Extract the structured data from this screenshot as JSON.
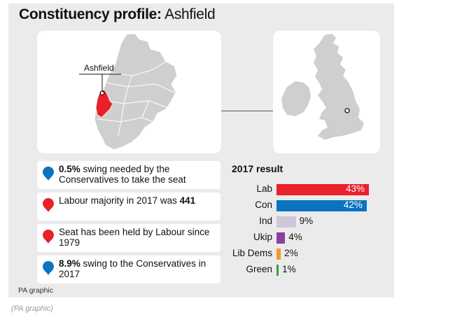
{
  "title": {
    "bold": "Constituency profile:",
    "regular": "Ashfield"
  },
  "map": {
    "label": "Ashfield",
    "highlight_color": "#e8212a",
    "land_color": "#cfcfcf"
  },
  "facts": [
    {
      "pin_color": "#0b73c2",
      "bold": "0.5%",
      "text": " swing needed by the Conservatives to take the seat"
    },
    {
      "pin_color": "#e8212a",
      "bold": "",
      "text": "Labour majority in 2017 was ",
      "bold_after": "441"
    },
    {
      "pin_color": "#e8212a",
      "bold": "",
      "text": "Seat has been held by Labour since 1979"
    },
    {
      "pin_color": "#0b73c2",
      "bold": "8.9%",
      "text": " swing to the Conservatives in 2017"
    }
  ],
  "chart_data": {
    "type": "bar",
    "title": "2017 result",
    "categories": [
      "Lab",
      "Con",
      "Ind",
      "Ukip",
      "Lib Dems",
      "Green"
    ],
    "values": [
      43,
      42,
      9,
      4,
      2,
      1
    ],
    "value_labels": [
      "43%",
      "42%",
      "9%",
      "4%",
      "2%",
      "1%"
    ],
    "colors": [
      "#e8212a",
      "#0b73c2",
      "#cfc6d9",
      "#8a3f9b",
      "#f39a2a",
      "#3aa13a"
    ]
  },
  "credit": "PA graphic",
  "caption": "(PA graphic)"
}
